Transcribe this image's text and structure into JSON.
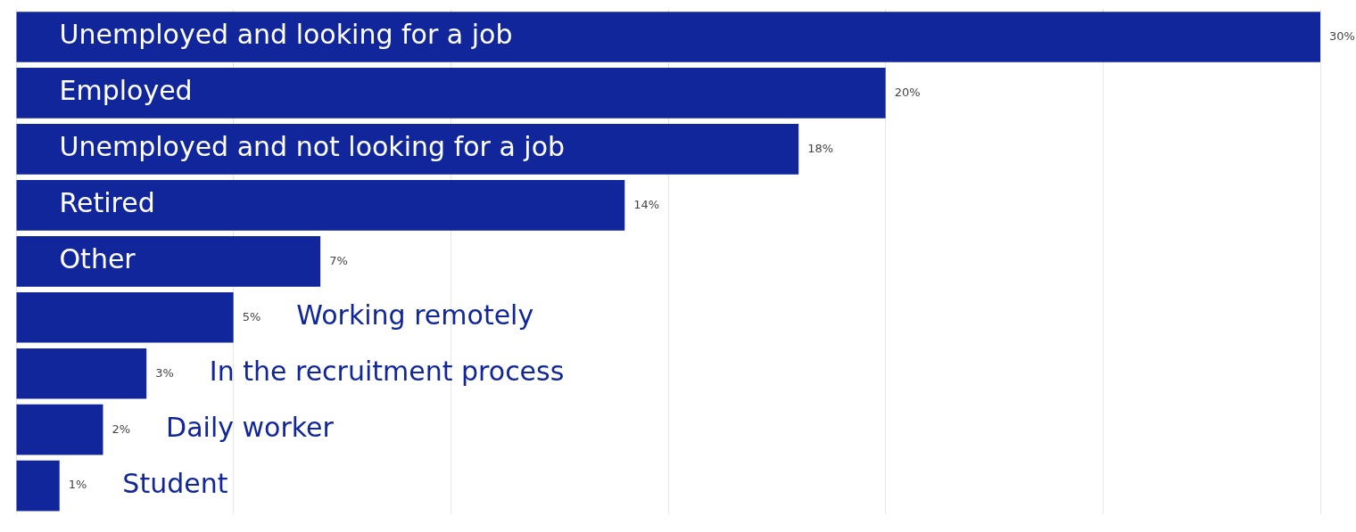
{
  "chart_data": {
    "type": "bar",
    "orientation": "horizontal",
    "categories": [
      "Unemployed and looking for a job",
      "Employed",
      "Unemployed and not looking for a job",
      "Retired",
      "Other",
      "Working remotely",
      "In the recruitment process",
      "Daily worker",
      "Student"
    ],
    "values": [
      30,
      20,
      18,
      14,
      7,
      5,
      3,
      2,
      1
    ],
    "value_labels": [
      "30%",
      "20%",
      "18%",
      "14%",
      "7%",
      "5%",
      "3%",
      "2%",
      "1%"
    ],
    "color": "#12269b",
    "xlim": [
      0,
      30
    ],
    "xticks": [
      {
        "value": 0,
        "label": null
      },
      {
        "value": 5,
        "label": null
      },
      {
        "value": 10,
        "label": null
      },
      {
        "value": 15,
        "label": null
      },
      {
        "value": 20,
        "label": null
      },
      {
        "value": 25,
        "label": null
      },
      {
        "value": 30,
        "label": null
      }
    ],
    "grid": "x",
    "legend": false
  }
}
